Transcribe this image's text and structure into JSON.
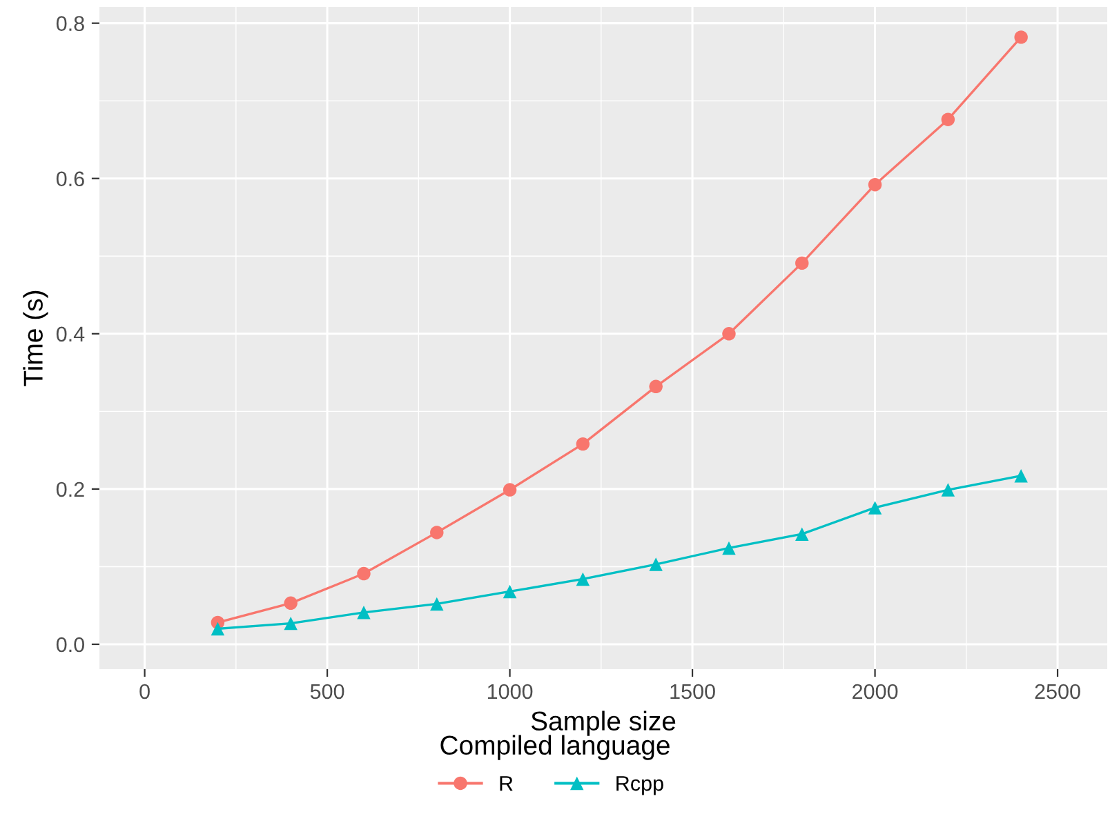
{
  "chart_data": {
    "type": "line",
    "xlabel": "Sample size",
    "ylabel": "Time (s)",
    "legend_title": "Compiled language",
    "x": [
      200,
      400,
      600,
      800,
      1000,
      1200,
      1400,
      1600,
      1800,
      2000,
      2200,
      2400
    ],
    "series": [
      {
        "name": "R",
        "color": "#f8766d",
        "marker": "circle",
        "values": [
          0.028,
          0.053,
          0.091,
          0.144,
          0.199,
          0.258,
          0.332,
          0.4,
          0.491,
          0.592,
          0.676,
          0.782
        ]
      },
      {
        "name": "Rcpp",
        "color": "#00bfc4",
        "marker": "triangle",
        "values": [
          0.02,
          0.027,
          0.041,
          0.052,
          0.068,
          0.084,
          0.103,
          0.124,
          0.142,
          0.176,
          0.199,
          0.217
        ]
      }
    ],
    "xlim": [
      -124,
      2636
    ],
    "ylim": [
      -0.032,
      0.821
    ],
    "xticks": [
      0,
      500,
      1000,
      1500,
      2000,
      2500
    ],
    "yticks": [
      {
        "value": 0,
        "label": "0.0"
      },
      {
        "value": 0.2,
        "label": "0.2"
      },
      {
        "value": 0.4,
        "label": "0.4"
      },
      {
        "value": 0.6,
        "label": "0.6"
      },
      {
        "value": 0.8,
        "label": "0.8"
      }
    ],
    "grid": true,
    "legend": "bottom",
    "line_style": "solid"
  }
}
